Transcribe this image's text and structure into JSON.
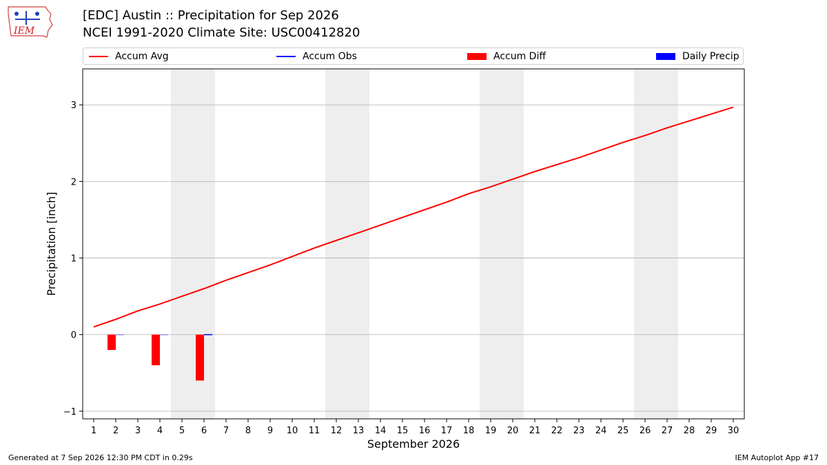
{
  "header": {
    "logo_text": "IEM",
    "title_line1": "[EDC] Austin :: Precipitation for Sep 2026",
    "title_line2": "NCEI 1991-2020 Climate Site: USC00412820"
  },
  "footer": {
    "left": "Generated at 7 Sep 2026 12:30 PM CDT in 0.29s",
    "right": "IEM Autoplot App #17"
  },
  "colors": {
    "accum_avg": "#ff0000",
    "accum_obs": "#0000ff",
    "accum_diff": "#ff0000",
    "daily_precip": "#0000ff",
    "weekend_shade": "#eeeeee",
    "grid": "#b0b0b0"
  },
  "legend": [
    {
      "label": "Accum Avg",
      "kind": "line",
      "color": "#ff0000"
    },
    {
      "label": "Accum Obs",
      "kind": "line",
      "color": "#0000ff"
    },
    {
      "label": "Accum Diff",
      "kind": "box",
      "color": "#ff0000"
    },
    {
      "label": "Daily Precip",
      "kind": "box",
      "color": "#0000ff"
    }
  ],
  "chart_data": {
    "type": "line",
    "xlabel": "September 2026",
    "ylabel": "Precipitation [inch]",
    "xlim": [
      0.5,
      30.5
    ],
    "ylim": [
      -1.1,
      3.47
    ],
    "x": [
      1,
      2,
      3,
      4,
      5,
      6,
      7,
      8,
      9,
      10,
      11,
      12,
      13,
      14,
      15,
      16,
      17,
      18,
      19,
      20,
      21,
      22,
      23,
      24,
      25,
      26,
      27,
      28,
      29,
      30
    ],
    "x_tick_labels": [
      "1",
      "2",
      "3",
      "4",
      "5",
      "6",
      "7",
      "8",
      "9",
      "10",
      "11",
      "12",
      "13",
      "14",
      "15",
      "16",
      "17",
      "18",
      "19",
      "20",
      "21",
      "22",
      "23",
      "24",
      "25",
      "26",
      "27",
      "28",
      "29",
      "30"
    ],
    "y_ticks": [
      -1,
      0,
      1,
      2,
      3
    ],
    "y_tick_labels": [
      "−1",
      "0",
      "1",
      "2",
      "3"
    ],
    "grid": "horizontal",
    "legend_position": "top",
    "weekend_shaded_days": [
      [
        5,
        6
      ],
      [
        12,
        13
      ],
      [
        19,
        20
      ],
      [
        26,
        27
      ]
    ],
    "series": [
      {
        "name": "Accum Avg",
        "kind": "line",
        "values": [
          0.1,
          0.2,
          0.31,
          0.4,
          0.5,
          0.6,
          0.71,
          0.81,
          0.91,
          1.02,
          1.13,
          1.23,
          1.33,
          1.43,
          1.53,
          1.63,
          1.73,
          1.84,
          1.93,
          2.03,
          2.13,
          2.22,
          2.31,
          2.41,
          2.51,
          2.6,
          2.7,
          2.79,
          2.88,
          2.97
        ]
      },
      {
        "name": "Accum Obs",
        "kind": "line",
        "x": [
          6
        ],
        "values": [
          0.0
        ]
      },
      {
        "name": "Accum Diff",
        "kind": "bar",
        "x": [
          2,
          4,
          6
        ],
        "values": [
          -0.2,
          -0.4,
          -0.6
        ]
      },
      {
        "name": "Daily Precip",
        "kind": "bar",
        "x": [
          2,
          4,
          6
        ],
        "values": [
          0.0,
          0.0,
          0.0
        ]
      }
    ]
  }
}
